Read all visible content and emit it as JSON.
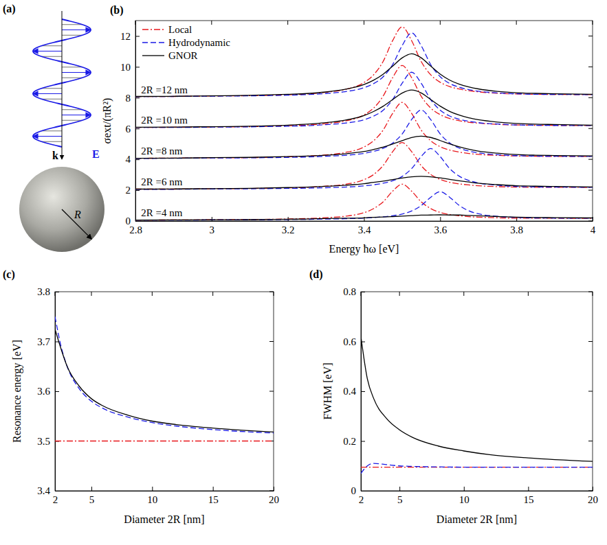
{
  "chart_data": [
    {
      "type": "diagram",
      "panel_label": "(a)",
      "wave_vector_label": "k",
      "field_label": "E",
      "radius_label": "R"
    },
    {
      "type": "line",
      "panel_label": "(b)",
      "x_label": "Energy ħω [eV]",
      "y_label": "σext/(πR²)",
      "x": [
        2.8,
        2.9,
        3.0,
        3.1,
        3.2,
        3.25,
        3.3,
        3.35,
        3.4,
        3.425,
        3.45,
        3.475,
        3.5,
        3.525,
        3.55,
        3.575,
        3.6,
        3.625,
        3.65,
        3.675,
        3.7,
        3.75,
        3.8,
        3.85,
        3.9,
        4.0
      ],
      "xlim": [
        2.8,
        4
      ],
      "xticks": [
        2.8,
        3,
        3.2,
        3.4,
        3.6,
        3.8,
        4
      ],
      "ylim": [
        0,
        13
      ],
      "yticks": [
        0,
        2,
        4,
        6,
        8,
        10,
        12
      ],
      "legend": "upper left",
      "series": [
        {
          "name": "Local",
          "color": "#e8161b",
          "line_style": "dashdot",
          "values": [
            0.06,
            0.07,
            0.08,
            0.1,
            0.13,
            0.16,
            0.22,
            0.31,
            0.54,
            0.8,
            1.24,
            1.93,
            2.39,
            1.94,
            1.25,
            0.81,
            0.56,
            0.42,
            0.34,
            0.28,
            0.25,
            0.21,
            0.18,
            0.18,
            0.18,
            0.17
          ]
        },
        {
          "name": "Hydrodynamic",
          "color": "#1a1ae6",
          "line_style": "dashed",
          "values": [
            0.06,
            0.06,
            0.07,
            0.08,
            0.1,
            0.11,
            0.13,
            0.15,
            0.19,
            0.23,
            0.27,
            0.34,
            0.45,
            0.65,
            1.0,
            1.54,
            1.9,
            1.54,
            1.01,
            0.66,
            0.47,
            0.3,
            0.23,
            0.2,
            0.19,
            0.18
          ]
        },
        {
          "name": "GNOR",
          "color": "#000000",
          "line_style": "solid",
          "values": [
            0.06,
            0.07,
            0.08,
            0.09,
            0.12,
            0.13,
            0.16,
            0.18,
            0.21,
            0.24,
            0.26,
            0.29,
            0.32,
            0.35,
            0.38,
            0.39,
            0.4,
            0.39,
            0.39,
            0.36,
            0.34,
            0.29,
            0.25,
            0.23,
            0.22,
            0.2
          ]
        },
        {
          "name": "Local",
          "color": "#e8161b",
          "line_style": "dashdot",
          "values": [
            2.07,
            2.07,
            2.09,
            2.11,
            2.15,
            2.18,
            2.26,
            2.38,
            2.68,
            3.01,
            3.59,
            4.49,
            5.09,
            4.5,
            3.6,
            3.02,
            2.7,
            2.51,
            2.41,
            2.34,
            2.29,
            2.23,
            2.2,
            2.19,
            2.19,
            2.18
          ]
        },
        {
          "name": "Hydrodynamic",
          "color": "#1a1ae6",
          "line_style": "dashed",
          "values": [
            2.06,
            2.06,
            2.08,
            2.09,
            2.12,
            2.13,
            2.16,
            2.2,
            2.28,
            2.35,
            2.45,
            2.61,
            2.89,
            3.4,
            4.18,
            4.7,
            4.18,
            3.4,
            2.91,
            2.63,
            2.47,
            2.32,
            2.24,
            2.21,
            2.2,
            2.19
          ]
        },
        {
          "name": "GNOR",
          "color": "#000000",
          "line_style": "solid",
          "values": [
            2.07,
            2.08,
            2.1,
            2.12,
            2.17,
            2.2,
            2.25,
            2.32,
            2.42,
            2.51,
            2.59,
            2.69,
            2.79,
            2.87,
            2.9,
            2.87,
            2.8,
            2.7,
            2.61,
            2.53,
            2.45,
            2.36,
            2.29,
            2.26,
            2.24,
            2.21
          ]
        },
        {
          "name": "Local",
          "color": "#e8161b",
          "line_style": "dashdot",
          "values": [
            4.07,
            4.08,
            4.1,
            4.11,
            4.17,
            4.21,
            4.29,
            4.44,
            4.8,
            5.2,
            5.89,
            6.97,
            7.69,
            6.98,
            5.9,
            5.21,
            4.82,
            4.6,
            4.47,
            4.38,
            4.32,
            4.26,
            4.22,
            4.2,
            4.19,
            4.19
          ]
        },
        {
          "name": "Hydrodynamic",
          "color": "#1a1ae6",
          "line_style": "dashed",
          "values": [
            4.06,
            4.07,
            4.09,
            4.1,
            4.13,
            4.15,
            4.2,
            4.26,
            4.39,
            4.52,
            4.71,
            5.05,
            5.64,
            6.58,
            7.2,
            6.58,
            5.65,
            5.06,
            4.73,
            4.54,
            4.42,
            4.3,
            4.24,
            4.21,
            4.2,
            4.19
          ]
        },
        {
          "name": "GNOR",
          "color": "#000000",
          "line_style": "solid",
          "values": [
            4.07,
            4.08,
            4.11,
            4.13,
            4.18,
            4.21,
            4.27,
            4.36,
            4.51,
            4.64,
            4.79,
            4.99,
            5.21,
            5.42,
            5.5,
            5.42,
            5.22,
            5.0,
            4.81,
            4.66,
            4.54,
            4.4,
            4.31,
            4.27,
            4.25,
            4.22
          ]
        },
        {
          "name": "Local",
          "color": "#e8161b",
          "line_style": "dashdot",
          "values": [
            6.07,
            6.08,
            6.1,
            6.12,
            6.18,
            6.22,
            6.32,
            6.48,
            6.88,
            7.32,
            8.09,
            9.29,
            10.09,
            9.3,
            8.1,
            7.33,
            6.9,
            6.65,
            6.51,
            6.41,
            6.35,
            6.27,
            6.23,
            6.21,
            6.2,
            6.19
          ]
        },
        {
          "name": "Hydrodynamic",
          "color": "#1a1ae6",
          "line_style": "dashed",
          "values": [
            6.07,
            6.07,
            6.09,
            6.11,
            6.15,
            6.18,
            6.25,
            6.35,
            6.57,
            6.8,
            7.18,
            7.87,
            8.93,
            9.65,
            8.94,
            7.88,
            7.19,
            6.81,
            6.6,
            6.47,
            6.38,
            6.29,
            6.23,
            6.21,
            6.2,
            6.19
          ]
        },
        {
          "name": "GNOR",
          "color": "#000000",
          "line_style": "solid",
          "values": [
            6.08,
            6.09,
            6.12,
            6.15,
            6.22,
            6.28,
            6.38,
            6.54,
            6.84,
            7.1,
            7.44,
            7.87,
            8.3,
            8.5,
            8.31,
            7.88,
            7.45,
            7.11,
            6.87,
            6.69,
            6.57,
            6.42,
            6.33,
            6.28,
            6.26,
            6.22
          ]
        },
        {
          "name": "Local",
          "color": "#e8161b",
          "line_style": "dashdot",
          "values": [
            8.07,
            8.08,
            8.11,
            8.13,
            8.19,
            8.24,
            8.35,
            8.53,
            8.98,
            9.48,
            10.34,
            11.69,
            12.59,
            11.7,
            10.35,
            9.49,
            9.0,
            8.72,
            8.56,
            8.45,
            8.38,
            8.29,
            8.24,
            8.22,
            8.21,
            8.2
          ]
        },
        {
          "name": "Hydrodynamic",
          "color": "#1a1ae6",
          "line_style": "dashed",
          "values": [
            8.07,
            8.08,
            8.1,
            8.12,
            8.16,
            8.2,
            8.27,
            8.39,
            8.65,
            8.91,
            9.35,
            10.14,
            11.37,
            12.2,
            11.38,
            10.15,
            9.36,
            8.92,
            8.68,
            8.52,
            8.42,
            8.31,
            8.25,
            8.22,
            8.21,
            8.2
          ]
        },
        {
          "name": "GNOR",
          "color": "#000000",
          "line_style": "solid",
          "values": [
            8.08,
            8.09,
            8.12,
            8.15,
            8.22,
            8.27,
            8.37,
            8.54,
            8.85,
            9.13,
            9.52,
            10.04,
            10.58,
            10.85,
            10.59,
            10.05,
            9.53,
            9.14,
            8.88,
            8.7,
            8.57,
            8.41,
            8.32,
            8.28,
            8.25,
            8.22
          ]
        }
      ],
      "annotations": [
        {
          "text": "2R =12 nm",
          "x": 2.815,
          "y": 8.3
        },
        {
          "text": "2R =10 nm",
          "x": 2.815,
          "y": 6.3
        },
        {
          "text": "2R =8 nm",
          "x": 2.815,
          "y": 4.3
        },
        {
          "text": "2R =6 nm",
          "x": 2.815,
          "y": 2.3
        },
        {
          "text": "2R =4 nm",
          "x": 2.815,
          "y": 0.3
        }
      ]
    },
    {
      "type": "line",
      "panel_label": "(c)",
      "x_label": "Diameter 2R [nm]",
      "y_label": "Resonance energy [eV]",
      "x": [
        2,
        2.5,
        3,
        4,
        5,
        6,
        8,
        10,
        12,
        15,
        20
      ],
      "xlim": [
        2,
        20
      ],
      "xticks": [
        2,
        5,
        10,
        15,
        20
      ],
      "ylim": [
        3.4,
        3.8
      ],
      "yticks": [
        3.4,
        3.5,
        3.6,
        3.7,
        3.8
      ],
      "series": [
        {
          "name": "Local",
          "color": "#e8161b",
          "line_style": "dashdot",
          "values": [
            3.5,
            3.5,
            3.5,
            3.5,
            3.5,
            3.5,
            3.5,
            3.5,
            3.5,
            3.5,
            3.5
          ]
        },
        {
          "name": "Hydrodynamic",
          "color": "#1a1ae6",
          "line_style": "dashed",
          "values": [
            3.75,
            3.69,
            3.65,
            3.605,
            3.58,
            3.565,
            3.548,
            3.537,
            3.53,
            3.523,
            3.516
          ]
        },
        {
          "name": "GNOR",
          "color": "#000000",
          "line_style": "solid",
          "values": [
            3.725,
            3.685,
            3.65,
            3.61,
            3.585,
            3.57,
            3.552,
            3.54,
            3.533,
            3.526,
            3.518
          ]
        }
      ]
    },
    {
      "type": "line",
      "panel_label": "(d)",
      "x_label": "Diameter 2R [nm]",
      "y_label": "FWHM [eV]",
      "x": [
        2,
        2.5,
        3,
        4,
        5,
        6,
        8,
        10,
        12,
        15,
        20
      ],
      "xlim": [
        2,
        20
      ],
      "xticks": [
        2,
        5,
        10,
        15,
        20
      ],
      "ylim": [
        0,
        0.8
      ],
      "yticks": [
        0,
        0.2,
        0.4,
        0.6,
        0.8
      ],
      "series": [
        {
          "name": "Local",
          "color": "#e8161b",
          "line_style": "dashdot",
          "values": [
            0.095,
            0.095,
            0.095,
            0.095,
            0.095,
            0.095,
            0.095,
            0.095,
            0.095,
            0.095,
            0.095
          ]
        },
        {
          "name": "Hydrodynamic",
          "color": "#1a1ae6",
          "line_style": "dashed",
          "values": [
            0.07,
            0.1,
            0.11,
            0.105,
            0.1,
            0.098,
            0.096,
            0.095,
            0.095,
            0.095,
            0.095
          ]
        },
        {
          "name": "GNOR",
          "color": "#000000",
          "line_style": "solid",
          "values": [
            0.62,
            0.45,
            0.37,
            0.29,
            0.245,
            0.215,
            0.18,
            0.16,
            0.145,
            0.132,
            0.118
          ]
        }
      ]
    }
  ]
}
